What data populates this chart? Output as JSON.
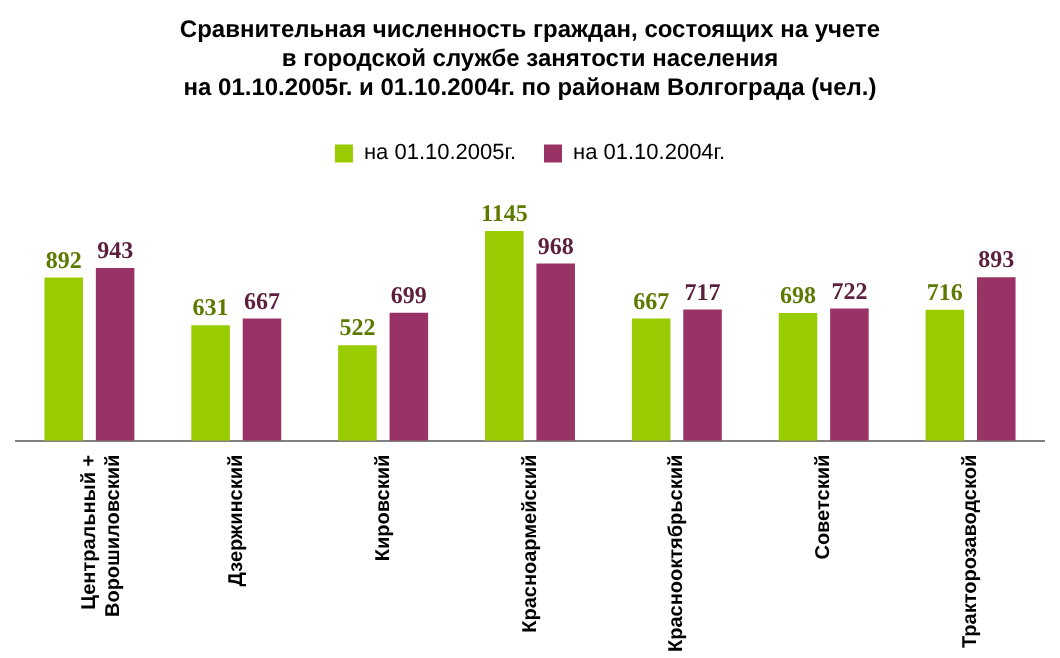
{
  "chart_data": {
    "type": "bar",
    "title": "Сравнительная численность граждан, состоящих на учете\nв городской службе занятости населения\nна 01.10.2005г. и 01.10.2004г. по районам Волгограда (чел.)",
    "categories": [
      "Центральный + Ворошиловский",
      "Дзержинский",
      "Кировский",
      "Красноармейский",
      "Краснооктябрьский",
      "Советский",
      "Тракторозаводской"
    ],
    "series": [
      {
        "name": "на 01.10.2005г.",
        "color": "#99cc00",
        "values": [
          892,
          631,
          522,
          1145,
          667,
          698,
          716
        ]
      },
      {
        "name": "на 01.10.2004г.",
        "color": "#993366",
        "values": [
          943,
          667,
          699,
          968,
          717,
          722,
          893
        ]
      }
    ],
    "data_labels": true,
    "legend": "top",
    "grid": false
  }
}
